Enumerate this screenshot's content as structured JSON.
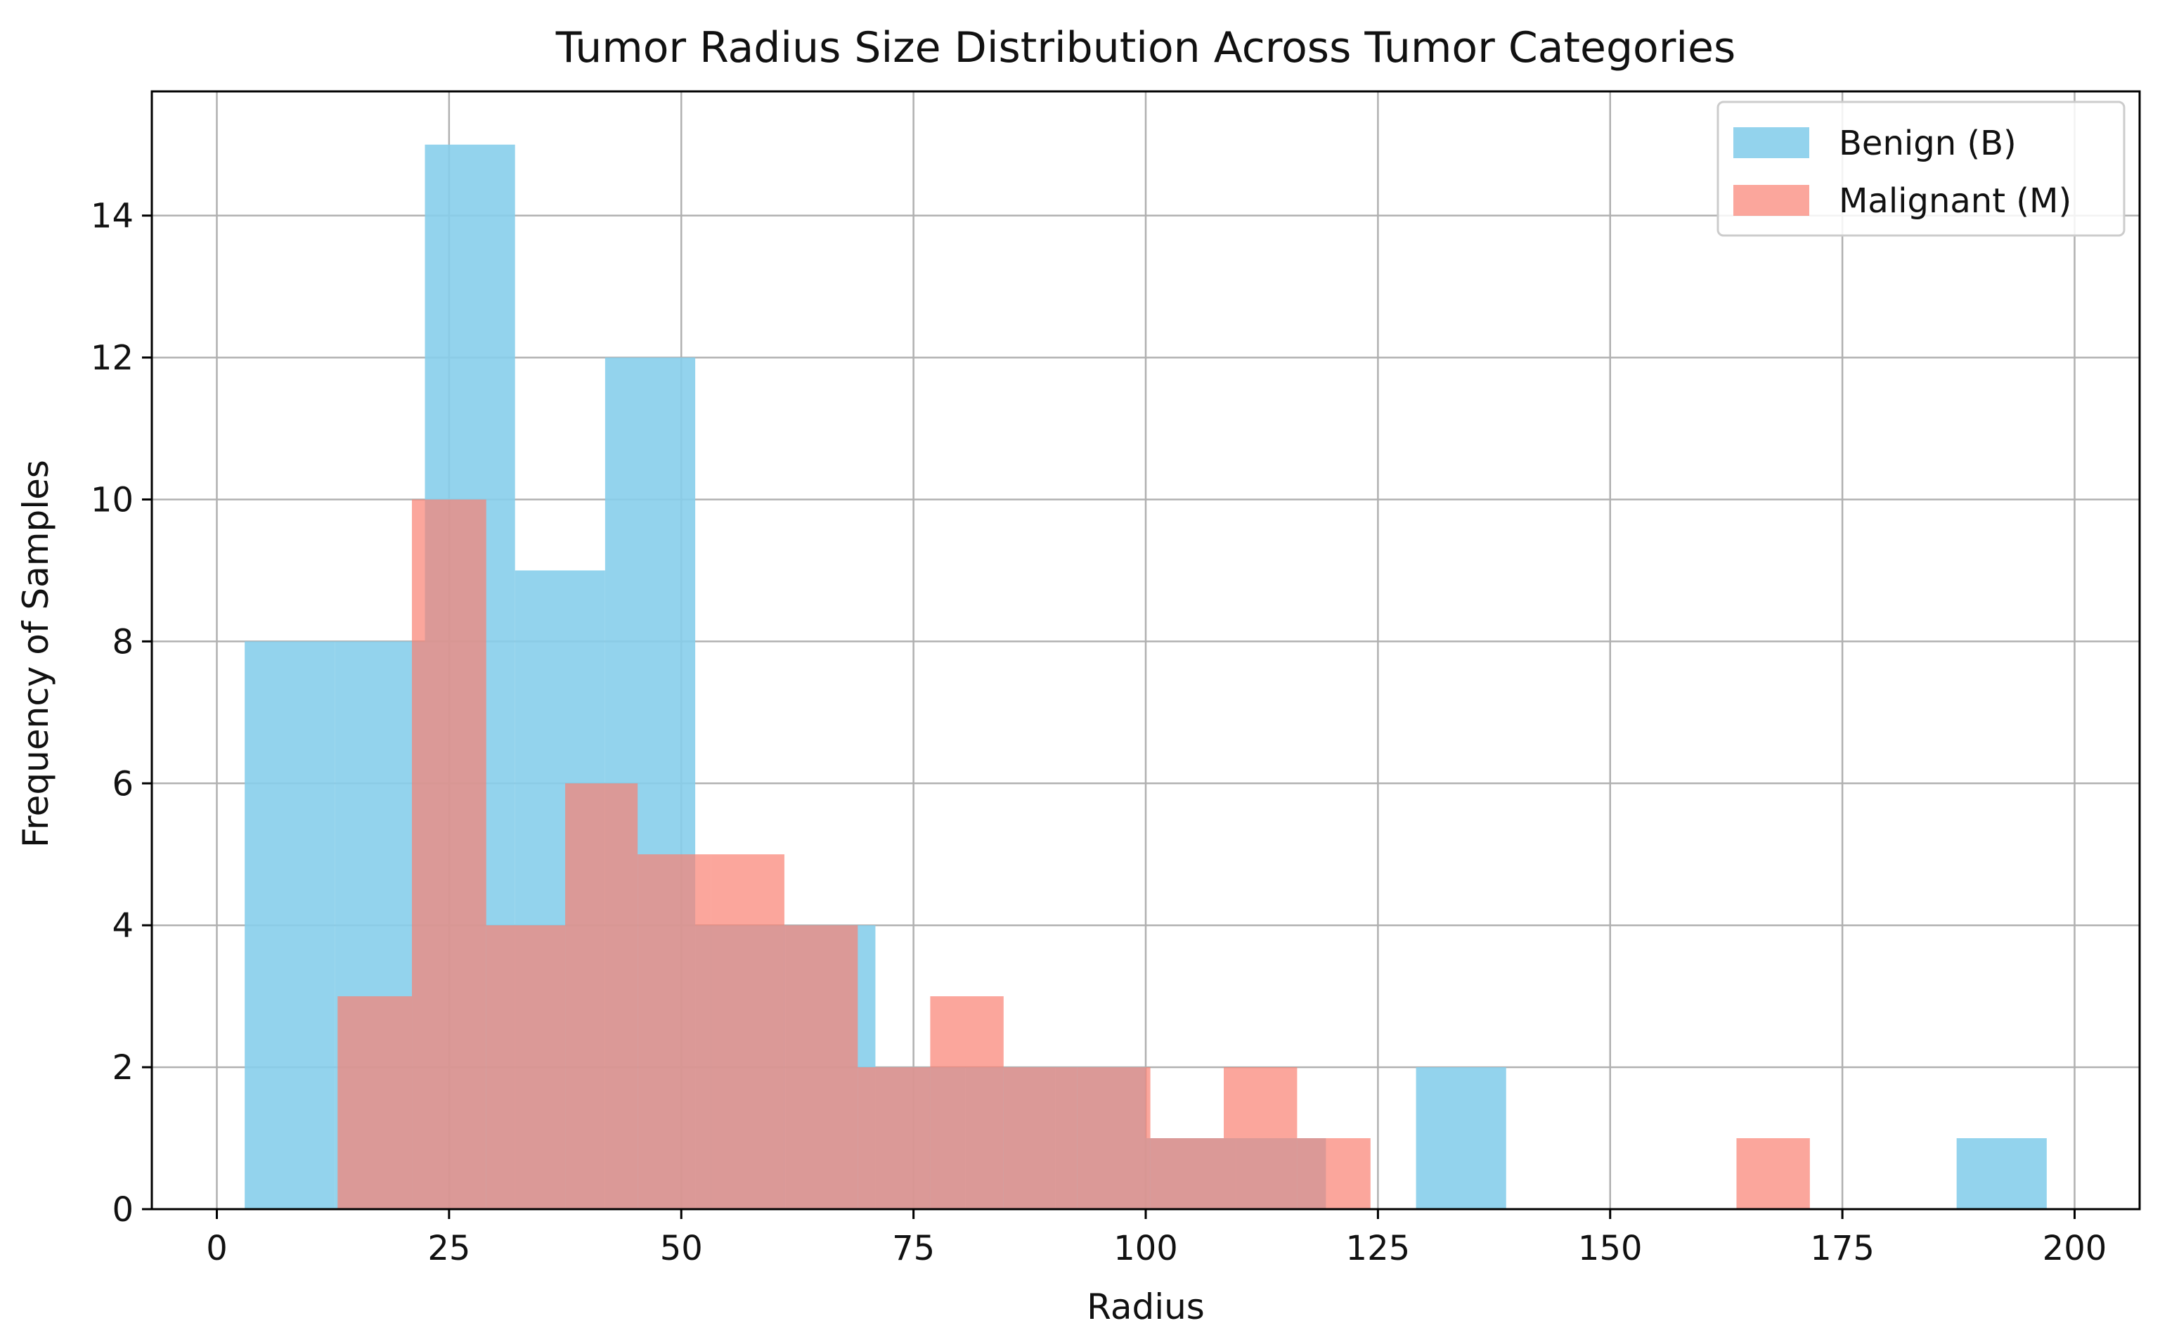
{
  "chart_data": {
    "type": "bar",
    "title": "Tumor Radius Size Distribution Across Tumor Categories",
    "xlabel": "Radius",
    "ylabel": "Frequency of Samples",
    "xlim": [
      -7,
      207
    ],
    "ylim": [
      0,
      15.75
    ],
    "xticks": [
      0,
      25,
      50,
      75,
      100,
      125,
      150,
      175,
      200
    ],
    "yticks": [
      0,
      2,
      4,
      6,
      8,
      10,
      12,
      14
    ],
    "grid": true,
    "legend_position": "top-right",
    "series": [
      {
        "name": "Benign (B)",
        "color": "#87CEEB",
        "opacity": 0.9,
        "bins": [
          {
            "x0": 3.0,
            "x1": 12.7,
            "count": 8
          },
          {
            "x0": 12.7,
            "x1": 22.4,
            "count": 8
          },
          {
            "x0": 22.4,
            "x1": 32.1,
            "count": 15
          },
          {
            "x0": 32.1,
            "x1": 41.8,
            "count": 9
          },
          {
            "x0": 41.8,
            "x1": 51.5,
            "count": 12
          },
          {
            "x0": 51.5,
            "x1": 61.2,
            "count": 4
          },
          {
            "x0": 61.2,
            "x1": 70.9,
            "count": 4
          },
          {
            "x0": 70.9,
            "x1": 80.6,
            "count": 2
          },
          {
            "x0": 80.6,
            "x1": 90.3,
            "count": 2
          },
          {
            "x0": 90.3,
            "x1": 100.0,
            "count": 2
          },
          {
            "x0": 100.0,
            "x1": 109.7,
            "count": 1
          },
          {
            "x0": 109.7,
            "x1": 119.4,
            "count": 1
          },
          {
            "x0": 119.4,
            "x1": 129.1,
            "count": 0
          },
          {
            "x0": 129.1,
            "x1": 138.8,
            "count": 2
          },
          {
            "x0": 138.8,
            "x1": 148.5,
            "count": 0
          },
          {
            "x0": 148.5,
            "x1": 158.2,
            "count": 0
          },
          {
            "x0": 158.2,
            "x1": 167.9,
            "count": 0
          },
          {
            "x0": 167.9,
            "x1": 177.6,
            "count": 0
          },
          {
            "x0": 177.6,
            "x1": 187.3,
            "count": 0
          },
          {
            "x0": 187.3,
            "x1": 197.0,
            "count": 1
          }
        ]
      },
      {
        "name": "Malignant (M)",
        "color": "#FA8072",
        "opacity": 0.7,
        "bins": [
          {
            "x0": 13.0,
            "x1": 21.0,
            "count": 3
          },
          {
            "x0": 21.0,
            "x1": 29.0,
            "count": 10
          },
          {
            "x0": 29.0,
            "x1": 37.5,
            "count": 4
          },
          {
            "x0": 37.5,
            "x1": 45.3,
            "count": 6
          },
          {
            "x0": 45.3,
            "x1": 53.2,
            "count": 5
          },
          {
            "x0": 53.2,
            "x1": 61.1,
            "count": 5
          },
          {
            "x0": 61.1,
            "x1": 69.0,
            "count": 4
          },
          {
            "x0": 69.0,
            "x1": 76.8,
            "count": 2
          },
          {
            "x0": 76.8,
            "x1": 84.7,
            "count": 3
          },
          {
            "x0": 84.7,
            "x1": 92.6,
            "count": 2
          },
          {
            "x0": 92.6,
            "x1": 100.5,
            "count": 2
          },
          {
            "x0": 100.5,
            "x1": 108.4,
            "count": 1
          },
          {
            "x0": 108.4,
            "x1": 116.3,
            "count": 2
          },
          {
            "x0": 116.3,
            "x1": 124.2,
            "count": 1
          },
          {
            "x0": 124.2,
            "x1": 132.1,
            "count": 0
          },
          {
            "x0": 132.1,
            "x1": 140.0,
            "count": 0
          },
          {
            "x0": 140.0,
            "x1": 147.8,
            "count": 0
          },
          {
            "x0": 147.8,
            "x1": 155.7,
            "count": 0
          },
          {
            "x0": 155.7,
            "x1": 163.6,
            "count": 0
          },
          {
            "x0": 163.6,
            "x1": 171.5,
            "count": 1
          }
        ]
      }
    ]
  }
}
